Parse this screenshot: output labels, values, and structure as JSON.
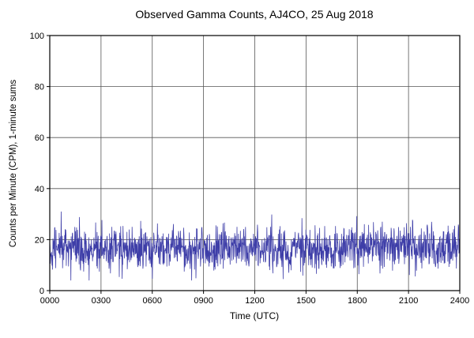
{
  "page": {
    "background": "#ffffff"
  },
  "chart_data": {
    "type": "line",
    "title": "Observed Gamma Counts, AJ4CO, 25 Aug 2018",
    "xlabel": "Time (UTC)",
    "ylabel": "Counts per Minute (CPM), 1-minute sums",
    "xlim": [
      0,
      1440
    ],
    "ylim": [
      0,
      100
    ],
    "grid": true,
    "legend": "none",
    "xticks": [
      {
        "value": 0,
        "label": "0000"
      },
      {
        "value": 180,
        "label": "0300"
      },
      {
        "value": 360,
        "label": "0600"
      },
      {
        "value": 540,
        "label": "0900"
      },
      {
        "value": 720,
        "label": "1200"
      },
      {
        "value": 900,
        "label": "1500"
      },
      {
        "value": 1080,
        "label": "1800"
      },
      {
        "value": 1260,
        "label": "2100"
      },
      {
        "value": 1440,
        "label": "2400"
      }
    ],
    "yticks": [
      {
        "value": 0,
        "label": "0"
      },
      {
        "value": 20,
        "label": "20"
      },
      {
        "value": 40,
        "label": "40"
      },
      {
        "value": 60,
        "label": "60"
      },
      {
        "value": 80,
        "label": "80"
      },
      {
        "value": 100,
        "label": "100"
      }
    ],
    "colors": {
      "line": "#3e3ea8",
      "grid": "#555555",
      "frame": "#000000",
      "text": "#000000"
    },
    "series": [
      {
        "name": "gamma_cpm_1min",
        "description": "Observed gamma counts, noisy band centered near 16-17 CPM across full 24 h",
        "n_points": 1440,
        "mean": 16.5,
        "std": 4.2,
        "observed_min": 4,
        "observed_max": 31,
        "seed": 20180825
      }
    ]
  }
}
